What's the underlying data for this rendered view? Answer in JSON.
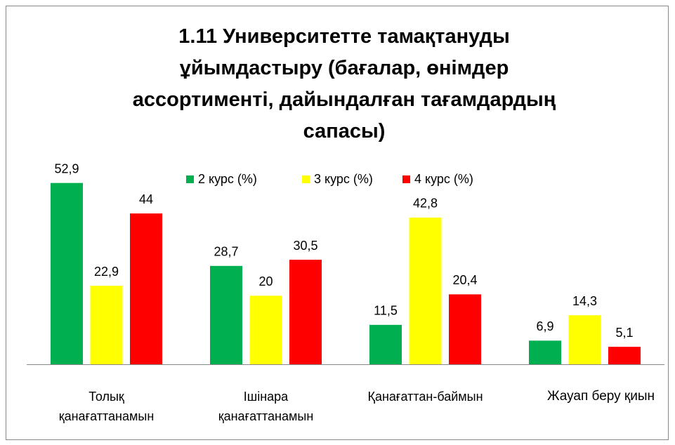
{
  "chart_data": {
    "type": "bar",
    "title": "1.11 Университетте тамақтануды ұйымдастыру (бағалар, өнімдер ассортименті, дайындалған тағамдардың сапасы)",
    "categories": [
      "Толық қанағаттанамын",
      "Ішінара қанағаттанамын",
      "Қанағаттан-баймын",
      "Жауап беру қиын"
    ],
    "series": [
      {
        "name": "2 курс (%)",
        "color": "#00b050",
        "values": [
          52.9,
          28.7,
          11.5,
          6.9
        ],
        "value_labels": [
          "52,9",
          "28,7",
          "11,5",
          "6,9"
        ]
      },
      {
        "name": "3 курс (%)",
        "color": "#ffff00",
        "values": [
          22.9,
          20,
          42.8,
          14.3
        ],
        "value_labels": [
          "22,9",
          "20",
          "42,8",
          "14,3"
        ]
      },
      {
        "name": "4 курс (%)",
        "color": "#ff0000",
        "values": [
          44,
          30.5,
          20.4,
          5.1
        ],
        "value_labels": [
          "44",
          "30,5",
          "20,4",
          "5,1"
        ]
      }
    ],
    "ylim": [
      0,
      60
    ],
    "legend": "top"
  }
}
